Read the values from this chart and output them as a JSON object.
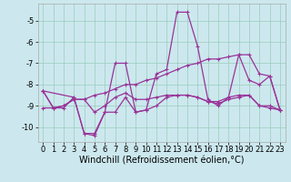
{
  "title": "",
  "xlabel": "Windchill (Refroidissement éolien,°C)",
  "bg_color": "#cce8ee",
  "grid_color": "#99ccbb",
  "line_color": "#993399",
  "xlim": [
    -0.5,
    23.5
  ],
  "ylim": [
    -10.7,
    -4.2
  ],
  "yticks": [
    -10,
    -9,
    -8,
    -7,
    -6,
    -5
  ],
  "xticks": [
    0,
    1,
    2,
    3,
    4,
    5,
    6,
    7,
    8,
    9,
    10,
    11,
    12,
    13,
    14,
    15,
    16,
    17,
    18,
    19,
    20,
    21,
    22,
    23
  ],
  "series": [
    {
      "x": [
        0,
        1,
        2,
        3,
        4,
        5,
        6,
        7,
        8,
        9,
        10,
        11,
        12,
        13,
        14,
        15,
        16,
        17,
        18,
        19,
        20,
        21,
        22,
        23
      ],
      "y": [
        -8.3,
        -9.1,
        -9.1,
        -8.6,
        -10.3,
        -10.4,
        -9.3,
        -7.0,
        -7.0,
        -9.3,
        -9.2,
        -7.5,
        -7.3,
        -4.6,
        -4.6,
        -6.2,
        -8.7,
        -9.0,
        -8.6,
        -6.6,
        -7.8,
        -8.0,
        -7.6,
        -9.2
      ]
    },
    {
      "x": [
        0,
        1,
        2,
        3,
        4,
        5,
        6,
        7,
        8,
        9,
        10,
        11,
        12,
        13,
        14,
        15,
        16,
        17,
        18,
        19,
        20,
        21,
        22,
        23
      ],
      "y": [
        -8.3,
        -9.1,
        -9.0,
        -8.7,
        -8.7,
        -9.3,
        -9.0,
        -8.6,
        -8.4,
        -8.7,
        -8.7,
        -8.6,
        -8.5,
        -8.5,
        -8.5,
        -8.6,
        -8.8,
        -8.9,
        -8.7,
        -8.6,
        -8.5,
        -9.0,
        -9.1,
        -9.2
      ]
    },
    {
      "x": [
        0,
        1,
        2,
        3,
        4,
        5,
        6,
        7,
        8,
        9,
        10,
        11,
        12,
        13,
        14,
        15,
        16,
        17,
        18,
        19,
        20,
        21,
        22,
        23
      ],
      "y": [
        -9.1,
        -9.1,
        -9.0,
        -8.7,
        -8.7,
        -8.5,
        -8.4,
        -8.2,
        -8.0,
        -8.0,
        -7.8,
        -7.7,
        -7.5,
        -7.3,
        -7.1,
        -7.0,
        -6.8,
        -6.8,
        -6.7,
        -6.6,
        -6.6,
        -7.5,
        -7.6,
        -9.2
      ]
    },
    {
      "x": [
        0,
        3,
        4,
        5,
        6,
        7,
        8,
        9,
        10,
        11,
        12,
        13,
        14,
        15,
        16,
        17,
        18,
        19,
        20,
        21,
        22,
        23
      ],
      "y": [
        -8.3,
        -8.6,
        -10.3,
        -10.3,
        -9.3,
        -9.3,
        -8.6,
        -9.3,
        -9.2,
        -9.0,
        -8.6,
        -8.5,
        -8.5,
        -8.6,
        -8.8,
        -8.8,
        -8.6,
        -8.5,
        -8.5,
        -9.0,
        -9.0,
        -9.2
      ]
    }
  ],
  "xlabel_fontsize": 7,
  "tick_fontsize": 6,
  "marker_size": 3,
  "linewidth": 0.9
}
